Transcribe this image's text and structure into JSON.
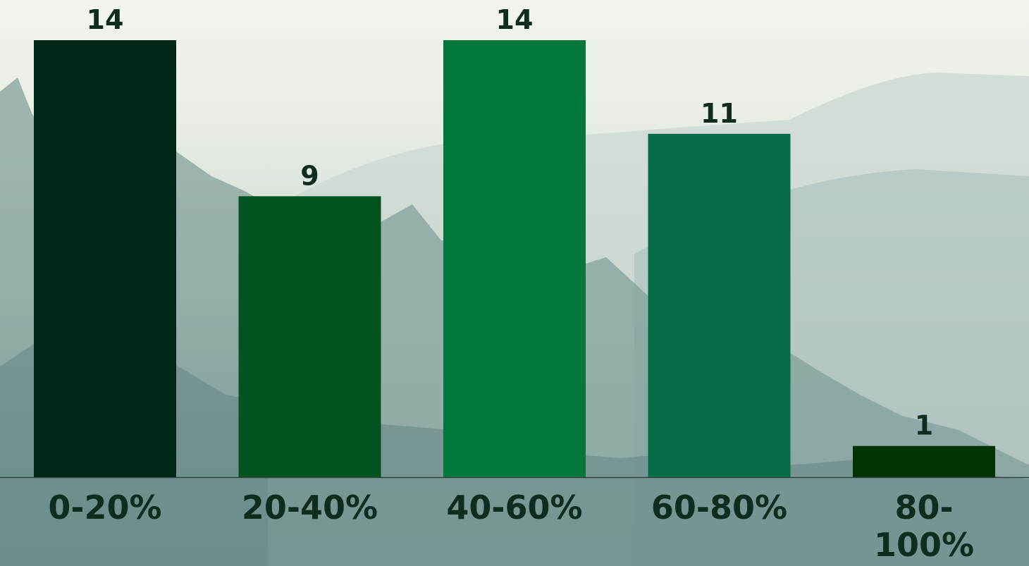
{
  "chart_data": {
    "type": "bar",
    "categories": [
      "0-20%",
      "20-40%",
      "40-60%",
      "60-80%",
      "80-\n100%"
    ],
    "values": [
      14,
      9,
      14,
      11,
      1
    ],
    "data_labels": [
      "14",
      "9",
      "14",
      "11",
      "1"
    ],
    "colors": [
      "#002616",
      "#02531f",
      "#02783b",
      "#076d46",
      "#013300"
    ],
    "ylim": [
      0,
      14
    ],
    "grid": false,
    "legend": "none",
    "title": "",
    "xlabel": "",
    "ylabel": ""
  }
}
